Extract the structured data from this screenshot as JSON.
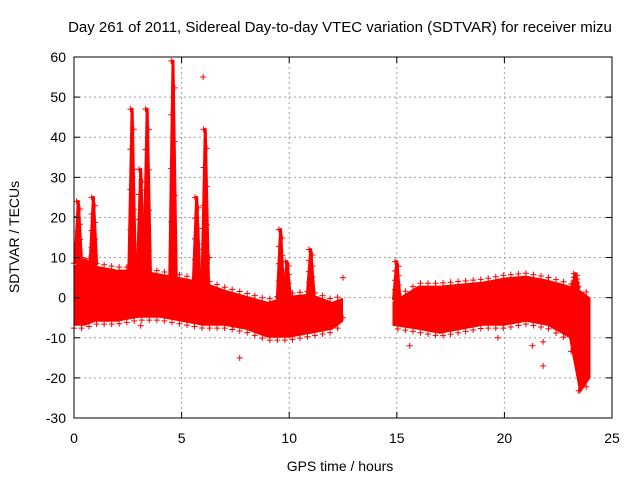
{
  "chart_data": {
    "type": "scatter",
    "title": "Day 261 of 2011, Sidereal Day-to-day VTEC variation (SDTVAR) for receiver mizu",
    "xlabel": "GPS time / hours",
    "ylabel": "SDTVAR / TECUs",
    "xlim": [
      0,
      25
    ],
    "ylim": [
      -30,
      60
    ],
    "xticks": [
      "0",
      "5",
      "10",
      "15",
      "20",
      "25"
    ],
    "yticks": [
      "-30",
      "-20",
      "-10",
      "0",
      "10",
      "20",
      "30",
      "40",
      "50",
      "60"
    ],
    "grid": true,
    "marker": "+",
    "series_color": "#ff0000",
    "band": {
      "x": [
        0,
        0.5,
        1,
        2,
        3,
        4,
        5,
        6,
        7,
        8,
        9,
        10,
        11,
        12,
        12.5,
        14.8,
        16,
        17,
        18,
        19,
        20,
        21,
        22,
        23,
        23.5,
        24
      ],
      "top": [
        8,
        10,
        8,
        7,
        7,
        6,
        5,
        4,
        2,
        0.5,
        -1,
        0.5,
        1,
        -1,
        0,
        -1,
        3,
        3,
        3.5,
        4,
        5,
        5.5,
        4.5,
        3,
        2,
        0
      ],
      "bot": [
        -7,
        -7,
        -6,
        -6,
        -5,
        -5,
        -6,
        -7,
        -7,
        -8,
        -10,
        -10,
        -9,
        -8,
        -6,
        -7,
        -8,
        -9,
        -8,
        -7,
        -7,
        -6,
        -7,
        -10,
        -24,
        -20
      ]
    },
    "spikes": [
      {
        "x": 0.2,
        "y": 24
      },
      {
        "x": 0.9,
        "y": 25
      },
      {
        "x": 2.7,
        "y": 47
      },
      {
        "x": 3.1,
        "y": 32
      },
      {
        "x": 3.4,
        "y": 47
      },
      {
        "x": 4.6,
        "y": 59
      },
      {
        "x": 5.7,
        "y": 25
      },
      {
        "x": 6.1,
        "y": 42
      },
      {
        "x": 9.6,
        "y": 17
      },
      {
        "x": 9.9,
        "y": 9
      },
      {
        "x": 11,
        "y": 12
      },
      {
        "x": 15,
        "y": 9
      },
      {
        "x": 23.3,
        "y": 6
      }
    ],
    "outliers": [
      {
        "x": 3.1,
        "y": -7
      },
      {
        "x": 6,
        "y": 55
      },
      {
        "x": 6.3,
        "y": 10
      },
      {
        "x": 7.4,
        "y": -7
      },
      {
        "x": 7.7,
        "y": -15
      },
      {
        "x": 9.6,
        "y": 7
      },
      {
        "x": 12.5,
        "y": 5
      },
      {
        "x": 12.5,
        "y": -5
      },
      {
        "x": 15.6,
        "y": -12
      },
      {
        "x": 19.7,
        "y": -10
      },
      {
        "x": 21.3,
        "y": -12
      },
      {
        "x": 21.8,
        "y": -11
      },
      {
        "x": 21.8,
        "y": -17
      }
    ]
  }
}
